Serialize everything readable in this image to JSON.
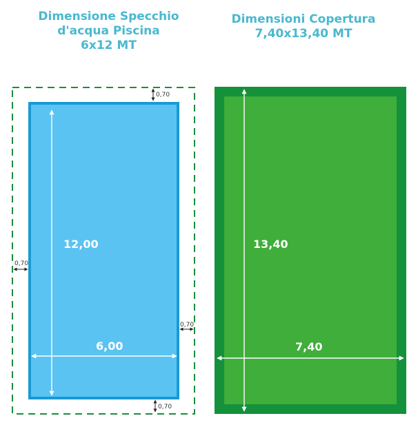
{
  "left": {
    "title_lines": [
      "Dimensione Specchio",
      "d'acqua Piscina",
      "6x12 MT"
    ],
    "length_label": "12,00",
    "width_label": "6,00",
    "margin_label": "0,70",
    "pool_color": "#5ac3f2",
    "pool_border": "#1a9ad6",
    "dash_color": "#1c8c3c"
  },
  "right": {
    "title_lines": [
      "Dimensioni Copertura",
      "7,40x13,40 MT"
    ],
    "length_label": "13,40",
    "width_label": "7,40",
    "outer_color": "#14913a",
    "inner_color": "#3fae3a"
  },
  "title_color": "#4ab8cf"
}
